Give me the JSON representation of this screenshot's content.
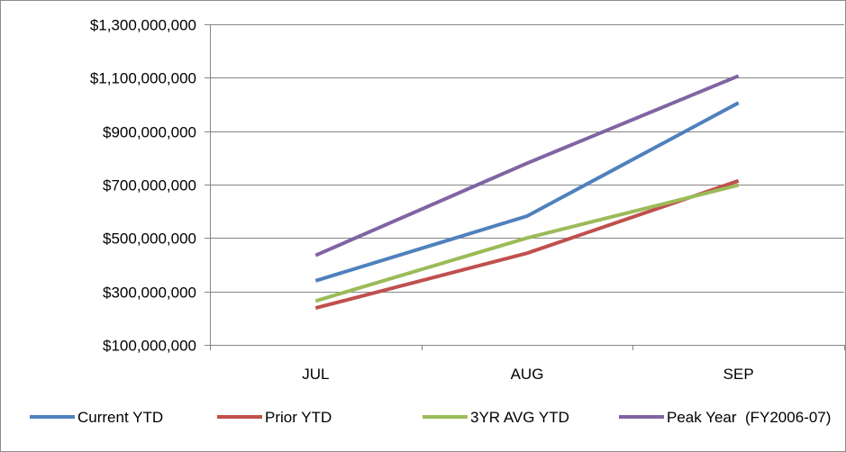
{
  "chart_data": {
    "type": "line",
    "title": "",
    "xlabel": "",
    "ylabel": "",
    "categories": [
      "JUL",
      "AUG",
      "SEP"
    ],
    "ylim": [
      100000000,
      1300000000
    ],
    "yticks": [
      100000000,
      300000000,
      500000000,
      700000000,
      900000000,
      1100000000,
      1300000000
    ],
    "ytick_labels": [
      "$100,000,000",
      "$300,000,000",
      "$500,000,000",
      "$700,000,000",
      "$900,000,000",
      "$1,100,000,000",
      "$1,300,000,000"
    ],
    "grid": "horizontal",
    "legend_position": "bottom",
    "series": [
      {
        "name": "Current YTD",
        "color": "#4f81bd",
        "values": [
          340000000,
          582000000,
          1006000000
        ]
      },
      {
        "name": "Prior YTD",
        "color": "#c0504d",
        "values": [
          238000000,
          443000000,
          714000000
        ]
      },
      {
        "name": "3YR AVG YTD",
        "color": "#9bbb59",
        "values": [
          264000000,
          500000000,
          698000000
        ]
      },
      {
        "name": "Peak Year  (FY2006-07)",
        "color": "#8064a2",
        "values": [
          435000000,
          780000000,
          1107000000
        ]
      }
    ]
  }
}
